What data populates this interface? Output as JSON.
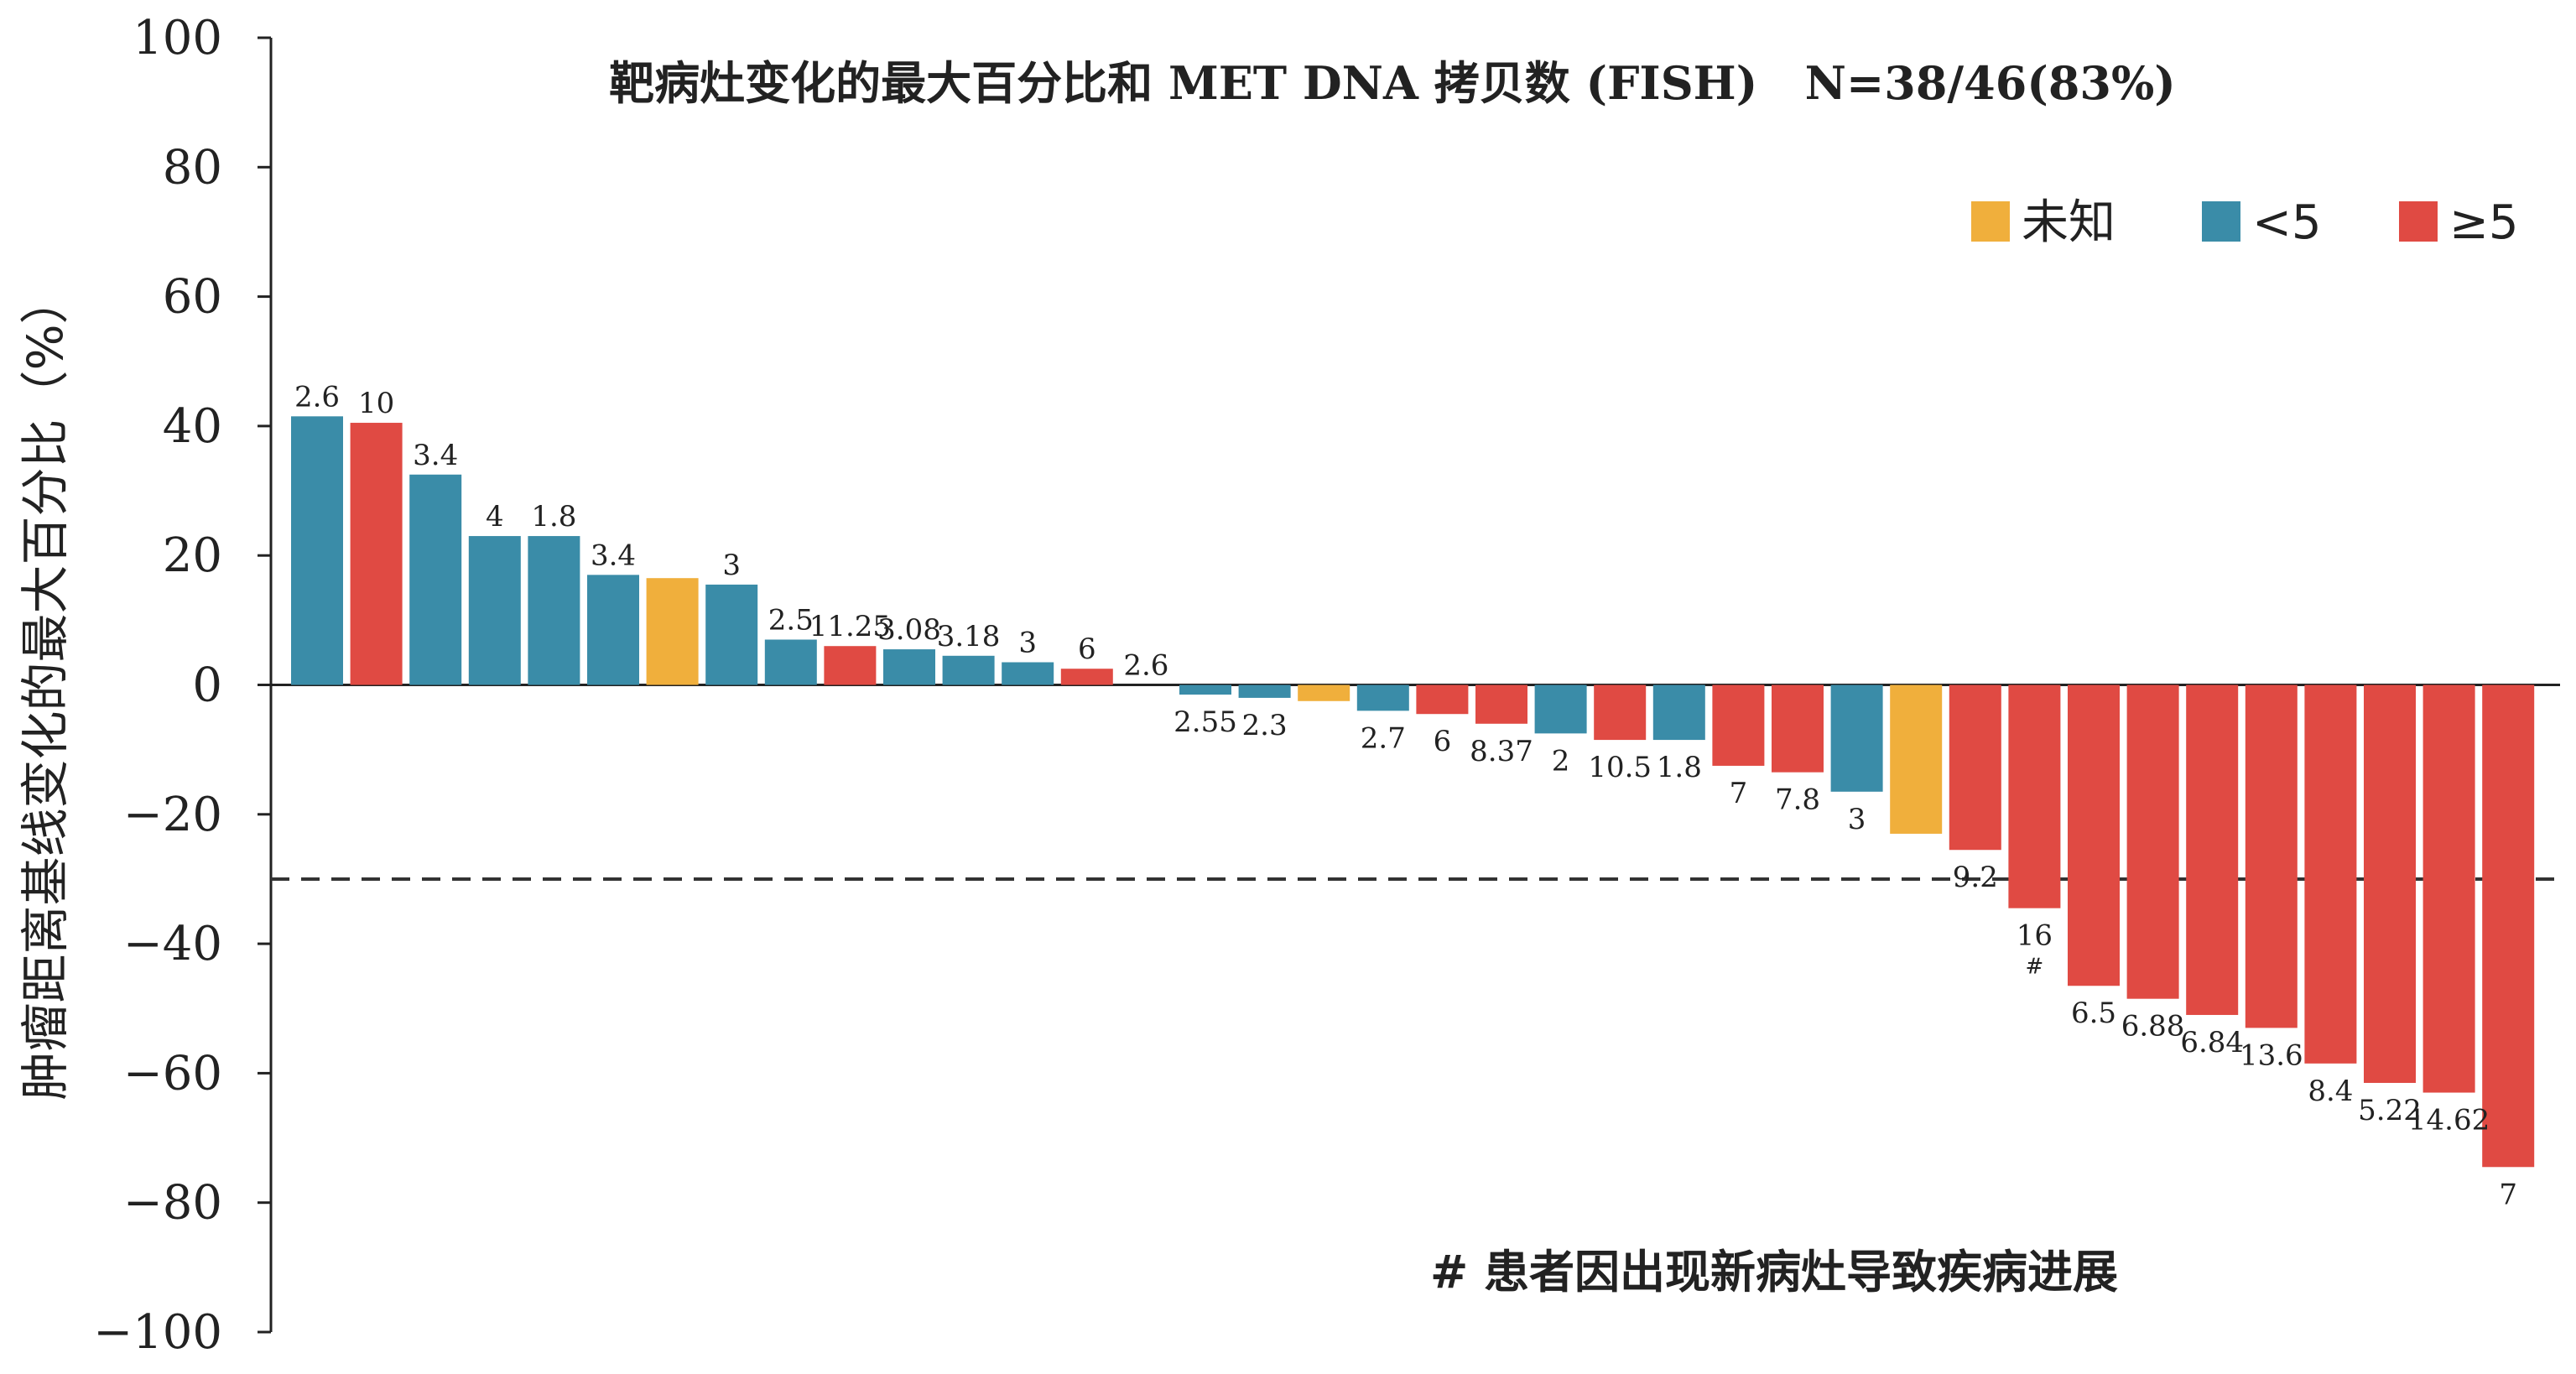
{
  "chart_data": {
    "type": "bar",
    "title": "靶病灶变化的最大百分比和 MET DNA 拷贝数 (FISH)   N=38/46(83%)",
    "ylabel": "肿瘤距离基线变化的最大百分比（%）",
    "xlabel": "",
    "ylim": [
      -100,
      100
    ],
    "yticks": [
      100,
      80,
      60,
      40,
      20,
      0,
      -20,
      -40,
      -60,
      -80,
      -100
    ],
    "ytick_labels": [
      "100",
      "80",
      "60",
      "40",
      "20",
      "0",
      "−20",
      "−40",
      "−60",
      "−80",
      "−100"
    ],
    "reference_line": {
      "y": -30,
      "style": "dashed"
    },
    "legend": {
      "position": "top-right",
      "items": [
        {
          "key": "unknown",
          "label": "未知",
          "color": "#F0AF3C"
        },
        {
          "key": "lt5",
          "label": "<5",
          "color": "#3A8CA8"
        },
        {
          "key": "ge5",
          "label": "≥5",
          "color": "#E04A43"
        }
      ]
    },
    "bars": [
      {
        "value": 41.5,
        "label": "2.6",
        "group": "lt5"
      },
      {
        "value": 40.5,
        "label": "10",
        "group": "ge5"
      },
      {
        "value": 32.5,
        "label": "3.4",
        "group": "lt5"
      },
      {
        "value": 23,
        "label": "4",
        "group": "lt5"
      },
      {
        "value": 23,
        "label": "1.8",
        "group": "lt5"
      },
      {
        "value": 17,
        "label": "3.4",
        "group": "lt5"
      },
      {
        "value": 16.5,
        "label": "",
        "group": "unknown"
      },
      {
        "value": 15.5,
        "label": "3",
        "group": "lt5"
      },
      {
        "value": 7,
        "label": "2.5",
        "group": "lt5"
      },
      {
        "value": 6,
        "label": "11.25",
        "group": "ge5"
      },
      {
        "value": 5.5,
        "label": "3.08",
        "group": "lt5"
      },
      {
        "value": 4.5,
        "label": "3.18",
        "group": "lt5"
      },
      {
        "value": 3.5,
        "label": "3",
        "group": "lt5"
      },
      {
        "value": 2.5,
        "label": "6",
        "group": "ge5"
      },
      {
        "value": 0,
        "label": "2.6",
        "group": "lt5"
      },
      {
        "value": -1.5,
        "label": "2.55",
        "group": "lt5"
      },
      {
        "value": -2,
        "label": "2.3",
        "group": "lt5"
      },
      {
        "value": -2.5,
        "label": "",
        "group": "unknown"
      },
      {
        "value": -4,
        "label": "2.7",
        "group": "lt5"
      },
      {
        "value": -4.5,
        "label": "6",
        "group": "ge5"
      },
      {
        "value": -6,
        "label": "8.37",
        "group": "ge5"
      },
      {
        "value": -7.5,
        "label": "2",
        "group": "lt5"
      },
      {
        "value": -8.5,
        "label": "10.5",
        "group": "ge5"
      },
      {
        "value": -8.5,
        "label": "1.8",
        "group": "lt5"
      },
      {
        "value": -12.5,
        "label": "7",
        "group": "ge5"
      },
      {
        "value": -13.5,
        "label": "7.8",
        "group": "ge5"
      },
      {
        "value": -16.5,
        "label": "3",
        "group": "lt5"
      },
      {
        "value": -23,
        "label": "",
        "group": "unknown"
      },
      {
        "value": -25.5,
        "label": "9.2",
        "group": "ge5"
      },
      {
        "value": -34.5,
        "label": "16",
        "group": "ge5",
        "marker": "#"
      },
      {
        "value": -46.5,
        "label": "6.5",
        "group": "ge5"
      },
      {
        "value": -48.5,
        "label": "6.88",
        "group": "ge5"
      },
      {
        "value": -51,
        "label": "6.84",
        "group": "ge5"
      },
      {
        "value": -53,
        "label": "13.6",
        "group": "ge5"
      },
      {
        "value": -58.5,
        "label": "8.4",
        "group": "ge5"
      },
      {
        "value": -61.5,
        "label": "5.22",
        "group": "ge5"
      },
      {
        "value": -63,
        "label": "14.62",
        "group": "ge5"
      },
      {
        "value": -74.5,
        "label": "7",
        "group": "ge5"
      }
    ],
    "footnote": "# 患者因出现新病灶导致疾病进展"
  }
}
